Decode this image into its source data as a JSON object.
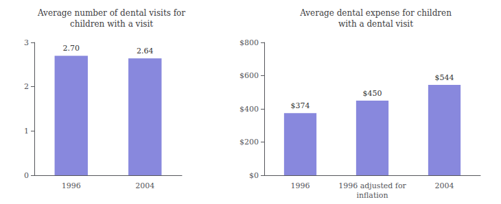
{
  "chart_data": [
    {
      "type": "bar",
      "title": "Average number of dental visits for\nchildren with a visit",
      "categories": [
        "1996",
        "2004"
      ],
      "values": [
        2.7,
        2.64
      ],
      "value_labels": [
        "2.70",
        "2.64"
      ],
      "data_labels": true,
      "color": "#8888dd",
      "ylim": [
        0,
        3
      ],
      "yticks": [
        0,
        1,
        2,
        3
      ],
      "grid": false
    },
    {
      "type": "bar",
      "title": "Average dental expense for children\nwith a dental visit",
      "categories": [
        "1996",
        "1996 adjusted for\ninflation",
        "2004"
      ],
      "values": [
        374,
        450,
        544
      ],
      "value_labels": [
        "$374",
        "$450",
        "$544"
      ],
      "data_labels": true,
      "color": "#8888dd",
      "ylim": [
        0,
        800
      ],
      "yticks": [
        {
          "value": 0,
          "label": "$0"
        },
        {
          "value": 200,
          "label": "$200"
        },
        {
          "value": 400,
          "label": "$400"
        },
        {
          "value": 600,
          "label": "$600"
        },
        {
          "value": 800,
          "label": "$800"
        }
      ],
      "grid": false
    }
  ]
}
